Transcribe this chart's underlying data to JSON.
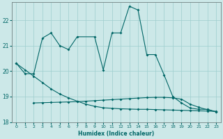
{
  "xlabel": "Humidex (Indice chaleur)",
  "bg_color": "#cce8e8",
  "grid_color": "#9ecece",
  "line_color": "#006666",
  "ylim": [
    18.0,
    22.7
  ],
  "xlim": [
    -0.5,
    23.5
  ],
  "yticks": [
    18,
    19,
    20,
    21,
    22
  ],
  "xticks": [
    0,
    1,
    2,
    3,
    4,
    5,
    6,
    7,
    8,
    9,
    10,
    11,
    12,
    13,
    14,
    15,
    16,
    17,
    18,
    19,
    20,
    21,
    22,
    23
  ],
  "line_wavy_x": [
    0,
    1,
    2,
    3,
    4,
    5,
    6,
    7,
    9,
    10,
    11,
    12,
    13,
    14,
    15,
    16,
    17,
    18,
    19,
    20,
    21,
    22,
    23
  ],
  "line_wavy_y": [
    20.3,
    19.9,
    19.9,
    21.3,
    21.5,
    21.0,
    20.85,
    21.35,
    21.35,
    20.05,
    21.5,
    21.5,
    22.55,
    22.4,
    20.65,
    20.65,
    19.85,
    19.0,
    18.75,
    18.55,
    18.5,
    18.5,
    18.4
  ],
  "line_diag_x": [
    0,
    1,
    2,
    3,
    4,
    5,
    6,
    7,
    8,
    9,
    10,
    11,
    12,
    13,
    14,
    15,
    16,
    17,
    18,
    19,
    20,
    21,
    22,
    23
  ],
  "line_diag_y": [
    20.3,
    20.05,
    19.8,
    19.55,
    19.3,
    19.1,
    18.95,
    18.82,
    18.7,
    18.62,
    18.56,
    18.54,
    18.52,
    18.51,
    18.5,
    18.5,
    18.49,
    18.48,
    18.47,
    18.46,
    18.45,
    18.44,
    18.43,
    18.42
  ],
  "line_flat_x": [
    2,
    3,
    4,
    5,
    6,
    7,
    8,
    9,
    10,
    11,
    12,
    13,
    14,
    15,
    16,
    17,
    18,
    19,
    20,
    21,
    22,
    23
  ],
  "line_flat_y": [
    18.75,
    18.76,
    18.77,
    18.78,
    18.79,
    18.8,
    18.82,
    18.84,
    18.86,
    18.88,
    18.9,
    18.92,
    18.94,
    18.96,
    18.97,
    18.97,
    18.95,
    18.9,
    18.7,
    18.58,
    18.48,
    18.4
  ]
}
